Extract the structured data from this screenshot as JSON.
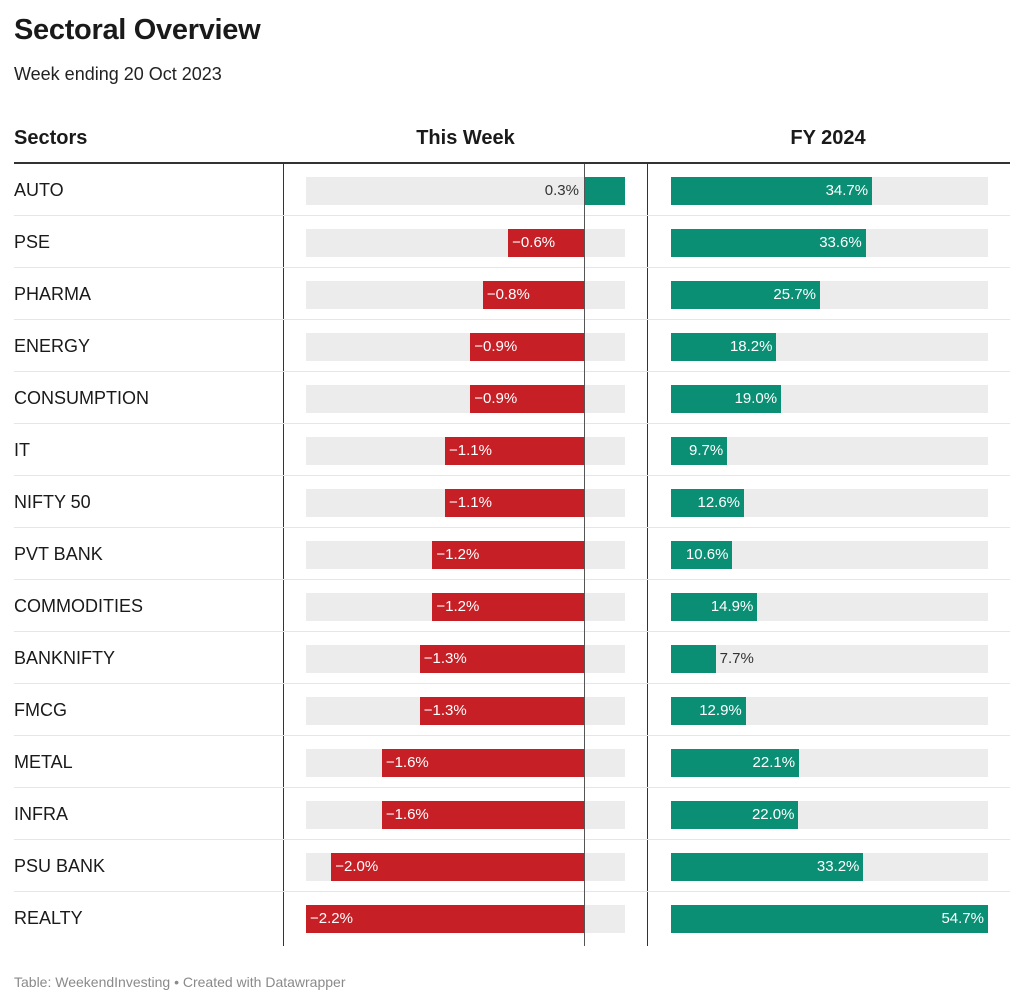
{
  "title": "Sectoral Overview",
  "subtitle": "Week ending 20 Oct 2023",
  "footer": "Table: WeekendInvesting • Created with Datawrapper",
  "colors": {
    "positive": "#0a8f74",
    "negative": "#c62026",
    "track": "#ececec"
  },
  "chart_data": {
    "type": "table",
    "columns": [
      "Sectors",
      "This Week",
      "FY 2024"
    ],
    "this_week_range": [
      -2.2,
      0.3
    ],
    "fy_range": [
      0,
      54.7
    ],
    "rows": [
      {
        "sector": "AUTO",
        "week": 0.3,
        "week_label": "0.3%",
        "fy": 34.7,
        "fy_label": "34.7%"
      },
      {
        "sector": "PSE",
        "week": -0.6,
        "week_label": "−0.6%",
        "fy": 33.6,
        "fy_label": "33.6%"
      },
      {
        "sector": "PHARMA",
        "week": -0.8,
        "week_label": "−0.8%",
        "fy": 25.7,
        "fy_label": "25.7%"
      },
      {
        "sector": "ENERGY",
        "week": -0.9,
        "week_label": "−0.9%",
        "fy": 18.2,
        "fy_label": "18.2%"
      },
      {
        "sector": "CONSUMPTION",
        "week": -0.9,
        "week_label": "−0.9%",
        "fy": 19.0,
        "fy_label": "19.0%"
      },
      {
        "sector": "IT",
        "week": -1.1,
        "week_label": "−1.1%",
        "fy": 9.7,
        "fy_label": "9.7%"
      },
      {
        "sector": "NIFTY 50",
        "week": -1.1,
        "week_label": "−1.1%",
        "fy": 12.6,
        "fy_label": "12.6%"
      },
      {
        "sector": "PVT BANK",
        "week": -1.2,
        "week_label": "−1.2%",
        "fy": 10.6,
        "fy_label": "10.6%"
      },
      {
        "sector": "COMMODITIES",
        "week": -1.2,
        "week_label": "−1.2%",
        "fy": 14.9,
        "fy_label": "14.9%"
      },
      {
        "sector": "BANKNIFTY",
        "week": -1.3,
        "week_label": "−1.3%",
        "fy": 7.7,
        "fy_label": "7.7%"
      },
      {
        "sector": "FMCG",
        "week": -1.3,
        "week_label": "−1.3%",
        "fy": 12.9,
        "fy_label": "12.9%"
      },
      {
        "sector": "METAL",
        "week": -1.6,
        "week_label": "−1.6%",
        "fy": 22.1,
        "fy_label": "22.1%"
      },
      {
        "sector": "INFRA",
        "week": -1.6,
        "week_label": "−1.6%",
        "fy": 22.0,
        "fy_label": "22.0%"
      },
      {
        "sector": "PSU BANK",
        "week": -2.0,
        "week_label": "−2.0%",
        "fy": 33.2,
        "fy_label": "33.2%"
      },
      {
        "sector": "REALTY",
        "week": -2.2,
        "week_label": "−2.2%",
        "fy": 54.7,
        "fy_label": "54.7%"
      }
    ]
  }
}
